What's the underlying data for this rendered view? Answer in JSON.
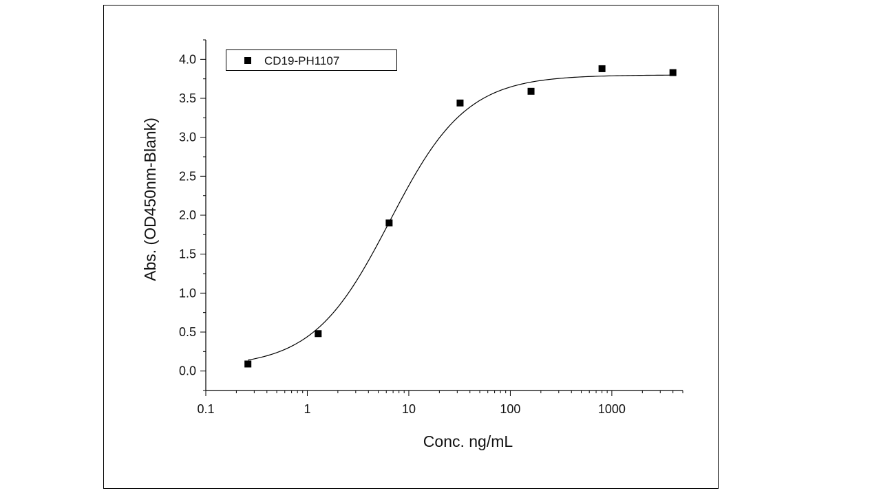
{
  "chart_data": {
    "type": "scatter",
    "title": "",
    "xlabel": "Conc. ng/mL",
    "ylabel": "Abs. (OD450nm-Blank)",
    "x_scale": "log",
    "xlim": [
      0.1,
      5000
    ],
    "ylim": [
      -0.25,
      4.25
    ],
    "x_ticks": [
      {
        "value": 0.1,
        "label": "0.1"
      },
      {
        "value": 1,
        "label": "1"
      },
      {
        "value": 10,
        "label": "10"
      },
      {
        "value": 100,
        "label": "100"
      },
      {
        "value": 1000,
        "label": "1000"
      }
    ],
    "y_ticks": [
      {
        "value": 0.0,
        "label": "0.0"
      },
      {
        "value": 0.5,
        "label": "0.5"
      },
      {
        "value": 1.0,
        "label": "1.0"
      },
      {
        "value": 1.5,
        "label": "1.5"
      },
      {
        "value": 2.0,
        "label": "2.0"
      },
      {
        "value": 2.5,
        "label": "2.5"
      },
      {
        "value": 3.0,
        "label": "3.0"
      },
      {
        "value": 3.5,
        "label": "3.5"
      },
      {
        "value": 4.0,
        "label": "4.0"
      }
    ],
    "grid": false,
    "legend": {
      "position": "top-left",
      "entries": [
        "CD19-PH1107"
      ]
    },
    "series": [
      {
        "name": "CD19-PH1107",
        "marker": "square",
        "color": "#000000",
        "x": [
          0.26,
          1.28,
          6.4,
          32,
          160,
          800,
          4000
        ],
        "y": [
          0.09,
          0.48,
          1.9,
          3.44,
          3.59,
          3.88,
          3.83
        ]
      }
    ],
    "fit_curve": {
      "type": "4PL",
      "color": "#000000",
      "bottom": 0.05,
      "top": 3.8,
      "ec50": 6.5,
      "hill": 1.15
    }
  }
}
